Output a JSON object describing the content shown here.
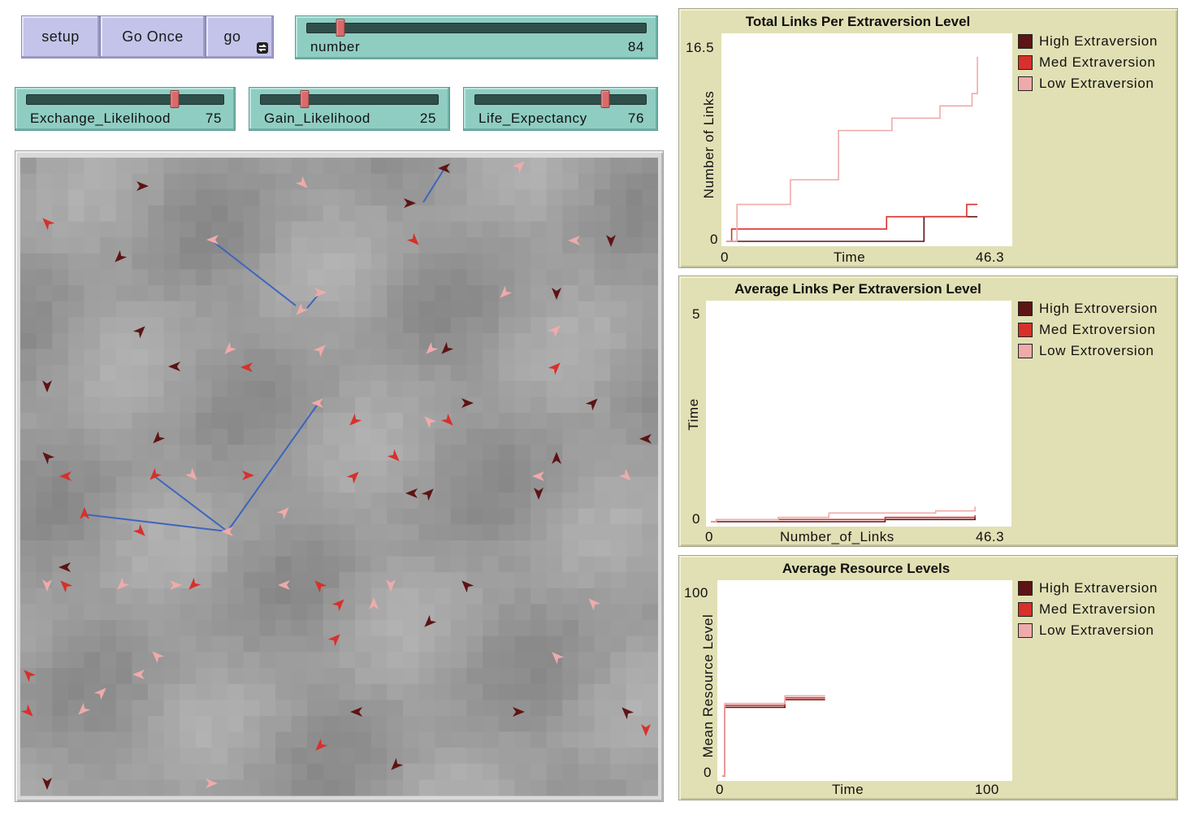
{
  "colors": {
    "high": "#5e1414",
    "med": "#d8302b",
    "low": "#f0aaaa",
    "link": "#3d64bf"
  },
  "buttons": {
    "setup": "setup",
    "go_once": "Go Once",
    "go": "go"
  },
  "sliders": {
    "number": {
      "label": "number",
      "value": "84",
      "fraction": 0.1
    },
    "exchange": {
      "label": "Exchange_Likelihood",
      "value": "75",
      "fraction": 0.75
    },
    "gain": {
      "label": "Gain_Likelihood",
      "value": "25",
      "fraction": 0.25
    },
    "life": {
      "label": "Life_Expectancy",
      "value": "76",
      "fraction": 0.76
    }
  },
  "plots": {
    "total": {
      "title": "Total Links Per Extraversion Level",
      "ylabel": "Number of Links",
      "xlabel": "Time",
      "xmin": "0",
      "xmax": "46.3",
      "ymin": "0",
      "ymax": "16.5",
      "legend": [
        "High Extraversion",
        "Med Extraversion",
        "Low Extraversion"
      ]
    },
    "average": {
      "title": "Average Links Per Extraversion Level",
      "ylabel": "Time",
      "xlabel": "Number_of_Links",
      "xmin": "0",
      "xmax": "46.3",
      "ymin": "0",
      "ymax": "5",
      "legend": [
        "High Extroversion",
        "Med Extroversion",
        "Low Extroversion"
      ]
    },
    "resource": {
      "title": "Average Resource Levels",
      "ylabel": "Mean Resource Level",
      "xlabel": "Time",
      "xmin": "0",
      "xmax": "100",
      "ymin": "0",
      "ymax": "100",
      "legend": [
        "High Extraversion",
        "Med Extraversion",
        "Low Extraversion"
      ]
    }
  },
  "chart_data": [
    {
      "type": "line",
      "title": "Total Links Per Extraversion Level",
      "xlabel": "Time",
      "ylabel": "Number of Links",
      "xlim": [
        0,
        46.3
      ],
      "ylim": [
        0,
        16.5
      ],
      "series": [
        {
          "name": "High Extraversion",
          "x": [
            0,
            35,
            35.5,
            37,
            37,
            47
          ],
          "y": [
            0,
            0,
            0,
            1,
            2,
            2
          ]
        },
        {
          "name": "Med Extraversion",
          "x": [
            0,
            1,
            30,
            30,
            45,
            45,
            47
          ],
          "y": [
            0,
            1,
            1,
            2,
            2,
            3,
            3
          ]
        },
        {
          "name": "Low Extraversion",
          "x": [
            0,
            1,
            2,
            11,
            12,
            20,
            21,
            30,
            31,
            39,
            40,
            45,
            46,
            47
          ],
          "y": [
            0,
            0,
            3,
            3,
            5,
            5,
            9,
            9,
            10,
            10,
            11,
            11,
            12,
            15
          ]
        }
      ]
    },
    {
      "type": "line",
      "title": "Average Links Per Extraversion Level",
      "xlabel": "Number_of_Links",
      "ylabel": "Time",
      "xlim": [
        0,
        46.3
      ],
      "ylim": [
        0,
        5
      ],
      "series": [
        {
          "name": "High Extroversion",
          "x": [
            0,
            30,
            31,
            47
          ],
          "y": [
            0,
            0,
            0.05,
            0.1
          ]
        },
        {
          "name": "Med Extroversion",
          "x": [
            0,
            1,
            30,
            31,
            47
          ],
          "y": [
            0,
            0.05,
            0.05,
            0.1,
            0.15
          ]
        },
        {
          "name": "Low Extroversion",
          "x": [
            0,
            1,
            11,
            12,
            20,
            21,
            39,
            40,
            46,
            47
          ],
          "y": [
            0,
            0.05,
            0.05,
            0.1,
            0.1,
            0.2,
            0.2,
            0.25,
            0.25,
            0.35
          ]
        }
      ]
    },
    {
      "type": "line",
      "title": "Average Resource Levels",
      "xlabel": "Time",
      "ylabel": "Mean Resource Level",
      "xlim": [
        0,
        100
      ],
      "ylim": [
        0,
        100
      ],
      "series": [
        {
          "name": "High Extraversion",
          "x": [
            0,
            1,
            24,
            25,
            41
          ],
          "y": [
            0,
            36,
            36,
            40,
            40
          ]
        },
        {
          "name": "Med Extraversion",
          "x": [
            0,
            1,
            24,
            25,
            41
          ],
          "y": [
            0,
            37,
            37,
            41,
            41
          ]
        },
        {
          "name": "Low Extraversion",
          "x": [
            0,
            1,
            24,
            25,
            41
          ],
          "y": [
            0,
            38,
            38,
            42,
            42
          ]
        }
      ]
    }
  ]
}
